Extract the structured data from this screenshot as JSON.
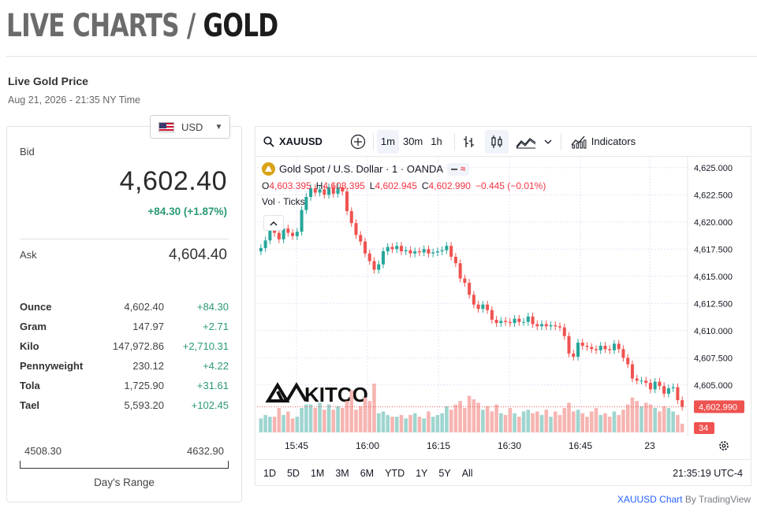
{
  "header": {
    "title_muted": "LIVE CHARTS /",
    "title_strong": "GOLD"
  },
  "sub": {
    "title": "Live Gold Price",
    "time": "Aug 21, 2026 - 21:35 NY Time"
  },
  "currency": {
    "selected": "USD",
    "icon": "us-flag-icon"
  },
  "bid": {
    "label": "Bid",
    "value": "4,602.40",
    "change": "+84.30 (+1.87%)",
    "change_color": "#2a9a72"
  },
  "ask": {
    "label": "Ask",
    "value": "4,604.40"
  },
  "units": [
    {
      "name": "Ounce",
      "price": "4,602.40",
      "change": "+84.30"
    },
    {
      "name": "Gram",
      "price": "147.97",
      "change": "+2.71"
    },
    {
      "name": "Kilo",
      "price": "147,972.86",
      "change": "+2,710.31"
    },
    {
      "name": "Pennyweight",
      "price": "230.12",
      "change": "+4.22"
    },
    {
      "name": "Tola",
      "price": "1,725.90",
      "change": "+31.61"
    },
    {
      "name": "Tael",
      "price": "5,593.20",
      "change": "+102.45"
    }
  ],
  "range": {
    "low": "4508.30",
    "high": "4632.90",
    "label": "Day's Range"
  },
  "toolbar": {
    "symbol": "XAUUSD",
    "intervals": [
      "1m",
      "30m",
      "1h"
    ],
    "active_interval": "1m",
    "indicators_label": "Indicators"
  },
  "legend": {
    "title": "Gold Spot / U.S. Dollar · 1 · OANDA",
    "o_key": "O",
    "o_val": "4,603.395",
    "h_key": "H",
    "h_val": "4,603.395",
    "l_key": "L",
    "l_val": "4,602.945",
    "c_key": "C",
    "c_val": "4,602.990",
    "chg": "−0.445 (−0.01%)",
    "vol": "Vol · Ticks"
  },
  "chart_data": {
    "type": "candlestick",
    "y_axis_ticks": [
      "4,625.000",
      "4,622.500",
      "4,620.000",
      "4,617.500",
      "4,615.000",
      "4,612.500",
      "4,610.000",
      "4,607.500",
      "4,605.000"
    ],
    "y_range": [
      4601,
      4626
    ],
    "x_axis_ticks": [
      "15:45",
      "16:00",
      "16:15",
      "16:30",
      "16:45",
      "23"
    ],
    "last_price_label": "4,602.990",
    "last_volume_label": "34",
    "up_color": "#26a69a",
    "down_color": "#ef5350",
    "watermark": "KITCO",
    "closes": [
      4617.6,
      4618.3,
      4619.2,
      4619.0,
      4618.4,
      4619.4,
      4619.0,
      4618.7,
      4619.1,
      4621.1,
      4622.3,
      4623.1,
      4622.7,
      4623.0,
      4622.5,
      4623.2,
      4622.6,
      4623.2,
      4622.8,
      4621.0,
      4619.9,
      4618.8,
      4618.2,
      4617.1,
      4616.4,
      4615.6,
      4616.1,
      4617.3,
      4617.7,
      4617.5,
      4617.8,
      4617.3,
      4617.4,
      4617.1,
      4617.3,
      4617.2,
      4617.5,
      4617.1,
      4617.2,
      4617.3,
      4617.4,
      4617.8,
      4616.8,
      4616.2,
      4614.8,
      4614.4,
      4613.3,
      4612.4,
      4612.0,
      4612.4,
      4611.9,
      4611.0,
      4610.7,
      4610.9,
      4610.8,
      4610.7,
      4611.1,
      4610.8,
      4610.8,
      4611.3,
      4610.6,
      4610.4,
      4610.6,
      4610.4,
      4610.5,
      4610.4,
      4610.3,
      4609.5,
      4607.9,
      4607.6,
      4608.9,
      4608.6,
      4608.5,
      4608.3,
      4608.2,
      4608.6,
      4608.3,
      4608.2,
      4608.8,
      4608.3,
      4607.5,
      4606.9,
      4605.6,
      4605.4,
      4605.4,
      4605.2,
      4604.6,
      4605.3,
      4604.9,
      4604.2,
      4604.7,
      4604.8,
      4603.6,
      4603.0
    ],
    "volumes": [
      8,
      10,
      9,
      9,
      14,
      10,
      12,
      8,
      9,
      14,
      16,
      16,
      14,
      17,
      13,
      16,
      13,
      15,
      14,
      18,
      24,
      13,
      15,
      20,
      18,
      28,
      11,
      12,
      10,
      9,
      9,
      10,
      8,
      10,
      11,
      9,
      8,
      12,
      9,
      10,
      11,
      15,
      13,
      16,
      18,
      14,
      21,
      19,
      17,
      13,
      15,
      12,
      16,
      11,
      10,
      14,
      11,
      9,
      12,
      13,
      11,
      12,
      10,
      13,
      9,
      12,
      10,
      14,
      17,
      12,
      13,
      11,
      9,
      12,
      14,
      10,
      11,
      9,
      12,
      10,
      13,
      16,
      20,
      18,
      15,
      17,
      16,
      14,
      12,
      15,
      14,
      12,
      10,
      5
    ]
  }
}
